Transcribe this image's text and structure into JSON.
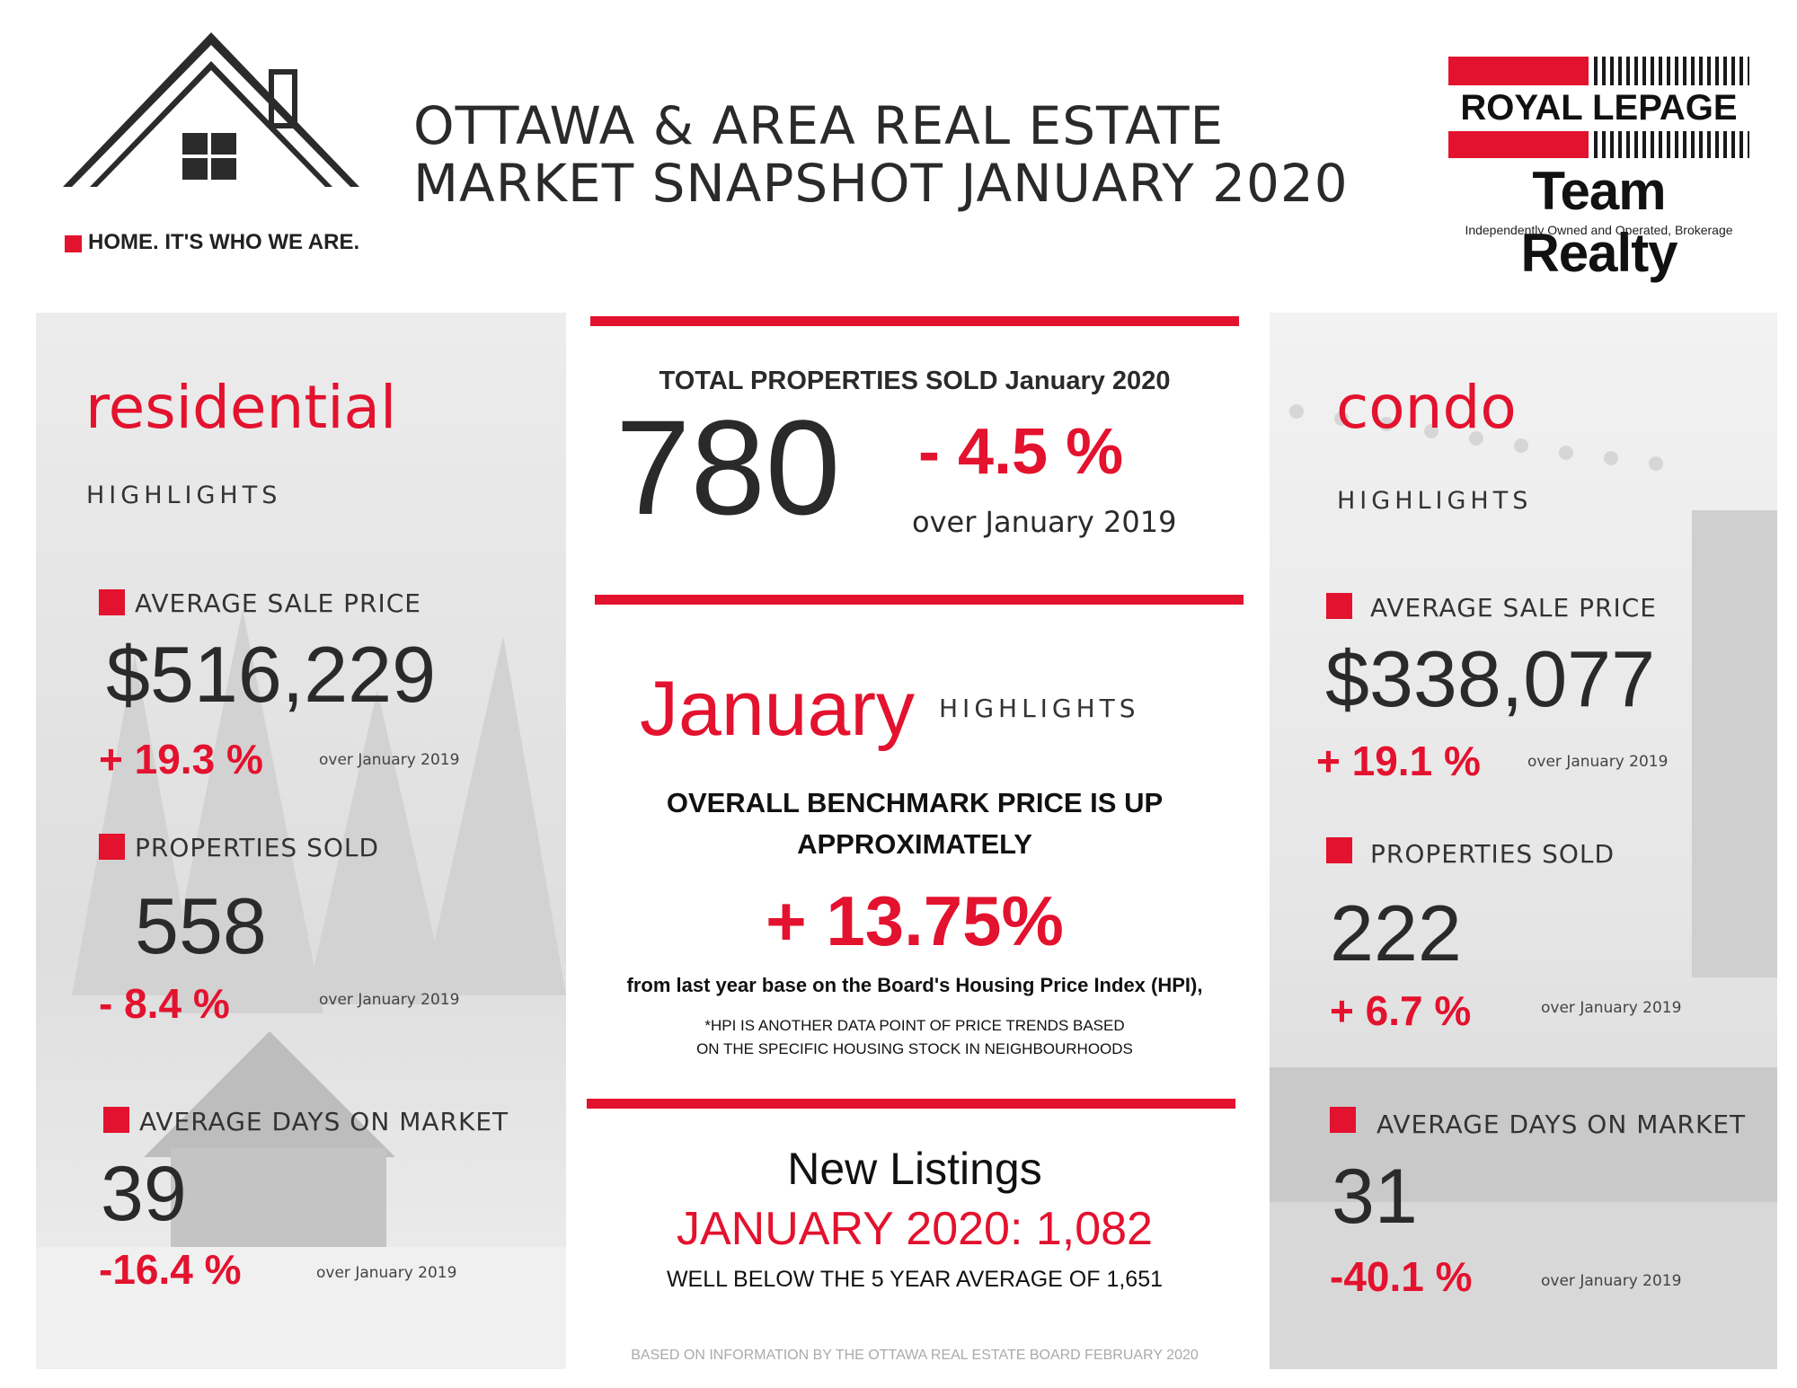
{
  "header": {
    "title_line1": "OTTAWA & AREA REAL ESTATE",
    "title_line2": "MARKET SNAPSHOT JANUARY 2020",
    "tagline": "HOME. IT'S WHO WE ARE.",
    "brand_line1": "ROYAL LEPAGE",
    "brand_line2": "Team Realty",
    "brand_line3": "Independently Owned and Operated, Brokerage"
  },
  "residential": {
    "title": "residential",
    "subtitle": "HIGHLIGHTS",
    "avg_price_label": "AVERAGE SALE PRICE",
    "avg_price_value": "$516,229",
    "avg_price_change": "+ 19.3 %",
    "avg_price_over": "over January 2019",
    "sold_label": "PROPERTIES SOLD",
    "sold_value": "558",
    "sold_change": "- 8.4 %",
    "sold_over": "over January 2019",
    "dom_label": "AVERAGE DAYS ON MARKET",
    "dom_value": "39",
    "dom_change": "-16.4 %",
    "dom_over": "over January 2019"
  },
  "condo": {
    "title": "condo",
    "subtitle": "HIGHLIGHTS",
    "avg_price_label": "AVERAGE SALE PRICE",
    "avg_price_value": "$338,077",
    "avg_price_change": "+ 19.1 %",
    "avg_price_over": "over January 2019",
    "sold_label": "PROPERTIES SOLD",
    "sold_value": "222",
    "sold_change": "+ 6.7 %",
    "sold_over": "over January 2019",
    "dom_label": "AVERAGE DAYS ON MARKET",
    "dom_value": "31",
    "dom_change": "-40.1 %",
    "dom_over": "over January 2019"
  },
  "total": {
    "label": "TOTAL PROPERTIES SOLD January 2020",
    "value": "780",
    "change": "- 4.5 %",
    "over": "over January 2019"
  },
  "january": {
    "title": "January",
    "subtitle": "HIGHLIGHTS",
    "benchmark_line1": "OVERALL BENCHMARK PRICE IS UP",
    "benchmark_line2": "APPROXIMATELY",
    "benchmark_value": "+ 13.75%",
    "benchmark_note": "from last year base on the Board's Housing Price Index (HPI),",
    "hpi_note_line1": "*HPI IS ANOTHER DATA POINT OF PRICE TRENDS BASED",
    "hpi_note_line2": "ON THE SPECIFIC HOUSING STOCK IN NEIGHBOURHOODS"
  },
  "listings": {
    "title": "New Listings",
    "value": "JANUARY 2020: 1,082",
    "note": "WELL BELOW THE 5 YEAR AVERAGE OF 1,651"
  },
  "footer": {
    "source": "BASED ON INFORMATION BY THE OTTAWA REAL ESTATE BOARD FEBRUARY 2020"
  },
  "colors": {
    "accent": "#e3122e",
    "text": "#2a2a2a",
    "panel": "#e6e6e6"
  }
}
